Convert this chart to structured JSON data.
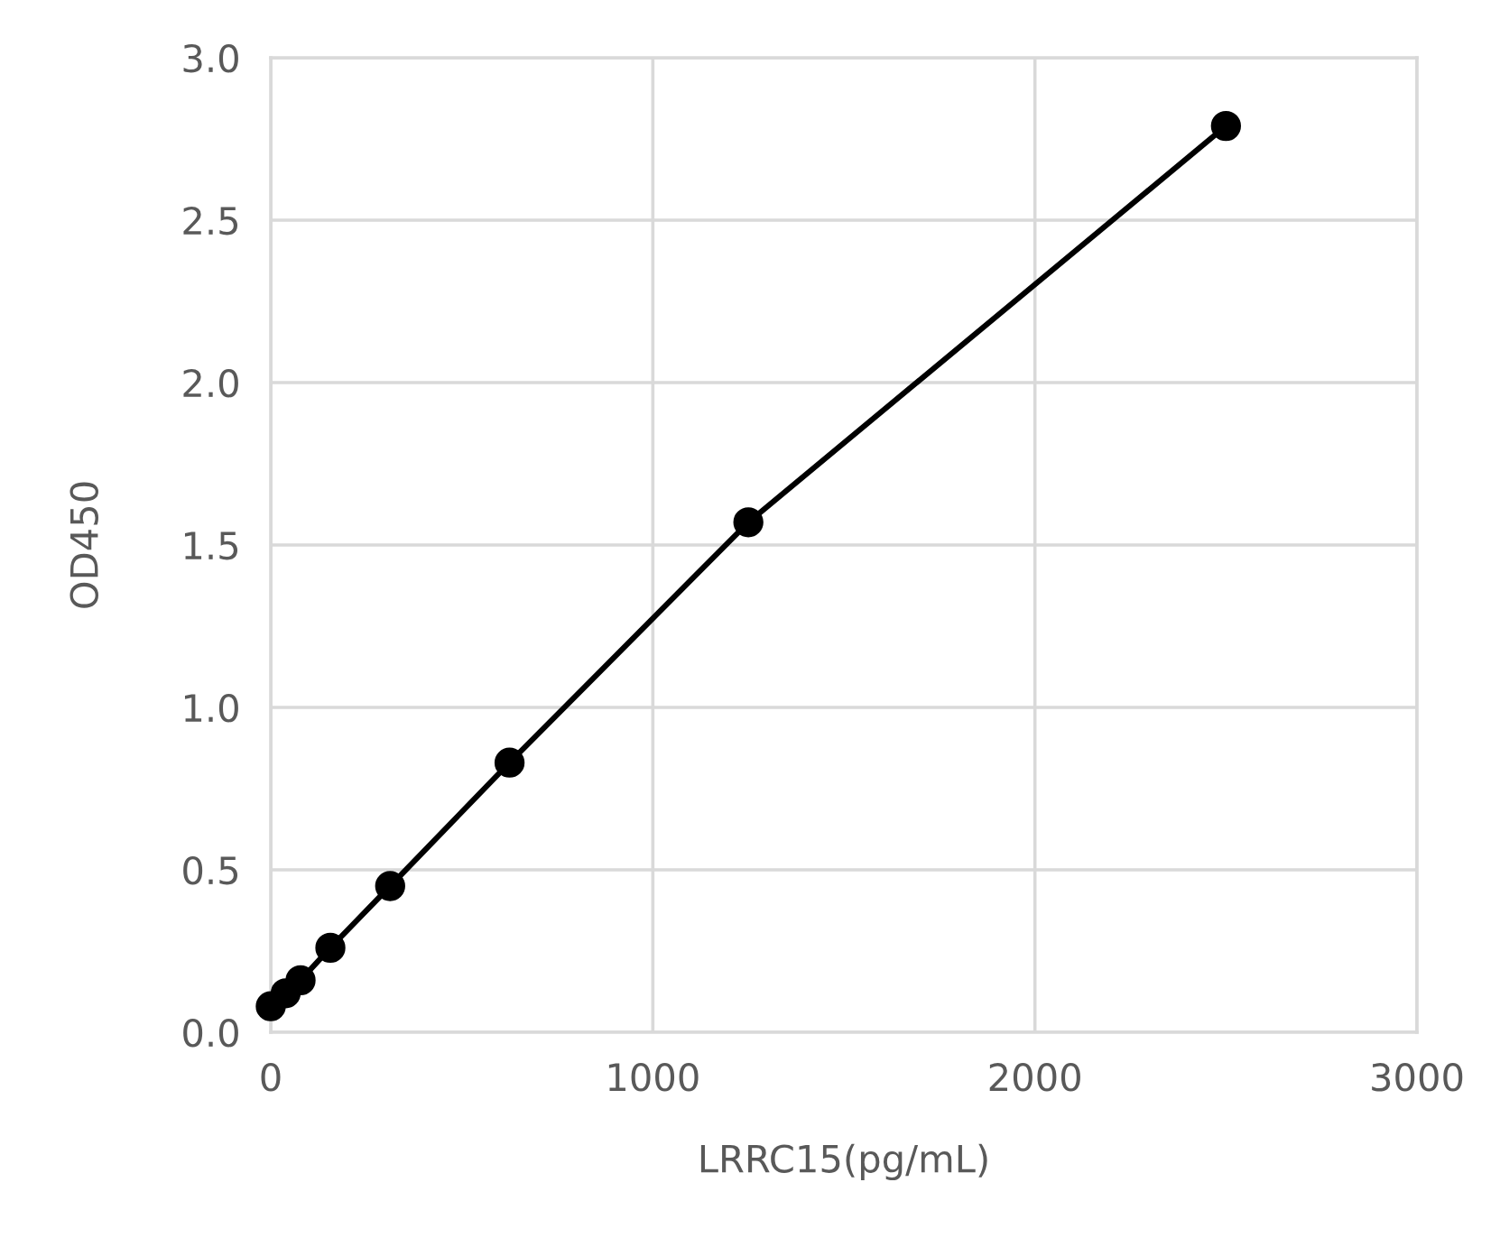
{
  "chart_data": {
    "type": "line",
    "xlabel": "LRRC15(pg/mL)",
    "ylabel": "OD450",
    "x": [
      0,
      39,
      78,
      156,
      312.5,
      625,
      1250,
      2500
    ],
    "series": [
      {
        "color": "#000000",
        "values": [
          0.08,
          0.12,
          0.16,
          0.26,
          0.45,
          0.83,
          1.57,
          2.79
        ]
      }
    ],
    "xlim": [
      0,
      3000
    ],
    "xticks": [
      0,
      1000,
      2000,
      3000
    ],
    "ylim": [
      0,
      3.0
    ],
    "yticks": [
      {
        "value": 0,
        "label": "0.0"
      },
      {
        "value": 0.5,
        "label": "0.5"
      },
      {
        "value": 1,
        "label": "1.0"
      },
      {
        "value": 1.5,
        "label": "1.5"
      },
      {
        "value": 2,
        "label": "2.0"
      },
      {
        "value": 2.5,
        "label": "2.5"
      },
      {
        "value": 3,
        "label": "3.0"
      }
    ],
    "grid": true,
    "marker": "circle",
    "line_style": "solid"
  }
}
